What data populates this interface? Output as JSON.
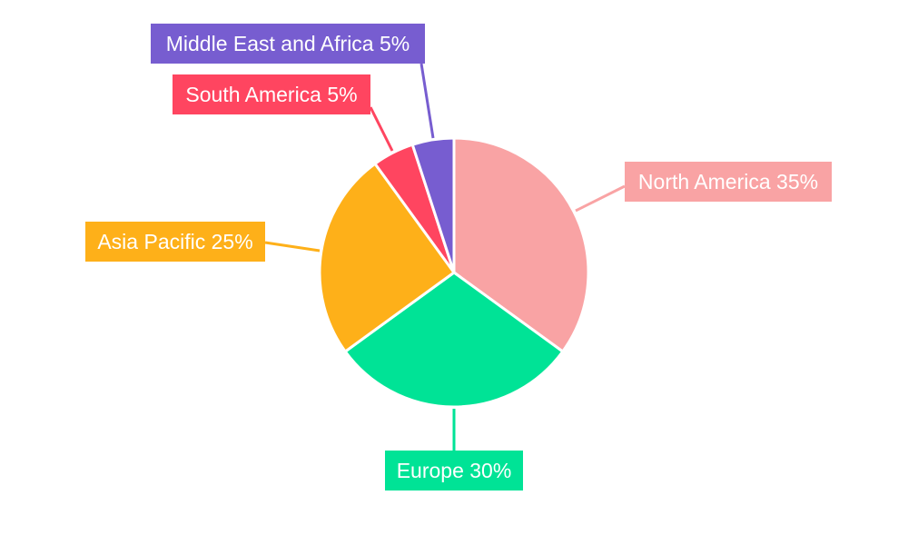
{
  "chart_data": {
    "type": "pie",
    "title": "",
    "categories": [
      "North America",
      "Europe",
      "Asia Pacific",
      "South America",
      "Middle East and Africa"
    ],
    "values": [
      35,
      30,
      25,
      5,
      5
    ],
    "unit": "%",
    "labels": [
      "North America 35%",
      "Europe 30%",
      "Asia Pacific 25%",
      "South America 5%",
      "Middle East and Africa 5%"
    ],
    "colors": [
      "#F9A3A4",
      "#00E396",
      "#FEB019",
      "#FF4560",
      "#775DD0"
    ],
    "start_angle_deg": 0,
    "direction": "clockwise",
    "legend": "none"
  }
}
